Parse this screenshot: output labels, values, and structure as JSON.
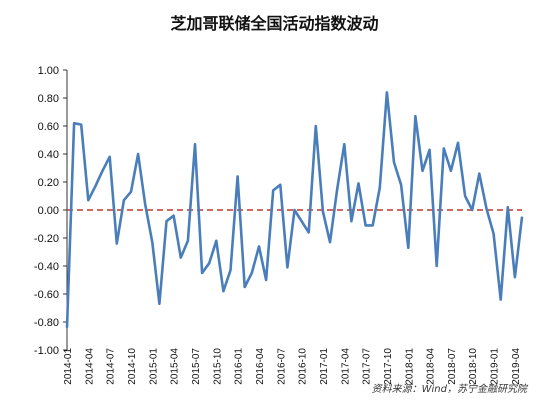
{
  "chart_data": {
    "type": "line",
    "title": "芝加哥联储全国活动指数波动",
    "source_note": "资料来源：Wind，苏宁金融研究院",
    "ylim": [
      -1.0,
      1.0
    ],
    "yticks": [
      "1.00",
      "0.80",
      "0.60",
      "0.40",
      "0.20",
      "0.00",
      "-0.20",
      "-0.40",
      "-0.60",
      "-0.80",
      "-1.00"
    ],
    "xtick_labels": [
      "2014-01",
      "2014-04",
      "2014-07",
      "2014-10",
      "2015-01",
      "2015-04",
      "2015-07",
      "2015-10",
      "2016-01",
      "2016-04",
      "2016-07",
      "2016-10",
      "2017-01",
      "2017-04",
      "2017-07",
      "2017-10",
      "2018-01",
      "2018-04",
      "2018-07",
      "2018-10",
      "2019-01",
      "2019-04"
    ],
    "grid": false,
    "reference_line": {
      "y": 0.0,
      "style": "dashed",
      "color": "#c0392b"
    },
    "colors": {
      "series": "#4a7ebb",
      "axis": "#333333",
      "text": "#111111"
    },
    "series": [
      {
        "values": [
          -0.84,
          0.62,
          0.61,
          0.07,
          0.17,
          0.28,
          0.38,
          -0.24,
          0.07,
          0.13,
          0.4,
          0.04,
          -0.23,
          -0.67,
          -0.08,
          -0.04,
          -0.34,
          -0.22,
          0.47,
          -0.45,
          -0.38,
          -0.22,
          -0.58,
          -0.43,
          0.24,
          -0.55,
          -0.45,
          -0.26,
          -0.5,
          0.14,
          0.18,
          -0.41,
          0.0,
          -0.08,
          -0.16,
          0.6,
          -0.01,
          -0.23,
          0.15,
          0.47,
          -0.08,
          0.19,
          -0.11,
          -0.11,
          0.16,
          0.84,
          0.34,
          0.18,
          -0.27,
          0.67,
          0.28,
          0.43,
          -0.4,
          0.44,
          0.28,
          0.48,
          0.1,
          0.0,
          0.26,
          0.01,
          -0.17,
          -0.64,
          0.02,
          -0.48,
          -0.05
        ]
      }
    ]
  }
}
